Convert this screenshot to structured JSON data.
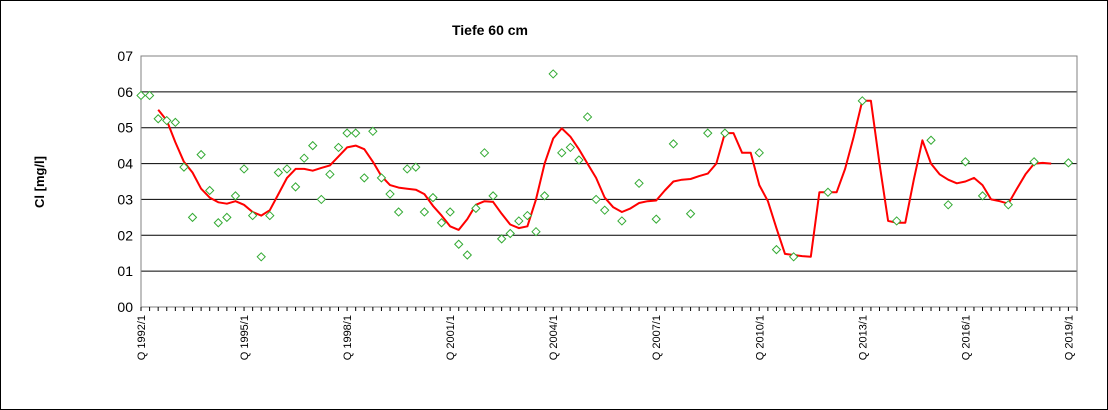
{
  "chart_data": {
    "type": "line",
    "title": "Tiefe  60 cm",
    "ylabel": "Cl [mg/l]",
    "xlabel": "",
    "ylim": [
      0,
      7
    ],
    "y_ticks": [
      "00",
      "01",
      "02",
      "03",
      "04",
      "05",
      "06",
      "07"
    ],
    "x_tick_labels": [
      "Q 1992/1",
      "Q 1995/1",
      "Q 1998/1",
      "Q 2001/1",
      "Q 2004/1",
      "Q 2007/1",
      "Q 2010/1",
      "Q 2013/1",
      "Q 2016/1",
      "Q 2019/1"
    ],
    "x_range": [
      1992.0,
      2019.25
    ],
    "grid": true,
    "colors": {
      "line": "#ff0000",
      "marker": "#33aa33",
      "grid": "#000000"
    },
    "series": [
      {
        "type": "scatter",
        "marker": "diamond-outline",
        "x": [
          1992.0,
          1992.25,
          1992.5,
          1992.75,
          1993.0,
          1993.25,
          1993.5,
          1993.75,
          1994.0,
          1994.25,
          1994.5,
          1994.75,
          1995.0,
          1995.25,
          1995.5,
          1995.75,
          1996.0,
          1996.25,
          1996.5,
          1996.75,
          1997.0,
          1997.25,
          1997.5,
          1997.75,
          1998.0,
          1998.25,
          1998.5,
          1998.75,
          1999.0,
          1999.25,
          1999.5,
          1999.75,
          2000.0,
          2000.25,
          2000.5,
          2000.75,
          2001.0,
          2001.25,
          2001.5,
          2001.75,
          2002.0,
          2002.25,
          2002.5,
          2002.75,
          2003.0,
          2003.25,
          2003.5,
          2003.75,
          2004.0,
          2004.25,
          2004.5,
          2004.75,
          2005.0,
          2005.25,
          2005.5,
          2006.0,
          2006.5,
          2007.0,
          2007.5,
          2008.0,
          2008.5,
          2009.0,
          2010.0,
          2010.5,
          2011.0,
          2012.0,
          2013.0,
          2014.0,
          2015.0,
          2015.5,
          2016.0,
          2016.5,
          2017.25,
          2018.0,
          2019.0
        ],
        "y": [
          5.9,
          5.9,
          5.25,
          5.2,
          5.15,
          3.9,
          2.5,
          4.25,
          3.25,
          2.35,
          2.5,
          3.1,
          3.85,
          2.55,
          1.4,
          2.55,
          3.75,
          3.85,
          3.35,
          4.15,
          4.5,
          3.0,
          3.7,
          4.45,
          4.85,
          4.85,
          3.6,
          4.9,
          3.6,
          3.15,
          2.65,
          3.85,
          3.9,
          2.65,
          3.05,
          2.35,
          2.65,
          1.75,
          1.45,
          2.75,
          4.3,
          3.1,
          1.9,
          2.05,
          2.4,
          2.55,
          2.1,
          3.1,
          6.5,
          4.3,
          4.45,
          4.1,
          5.3,
          3.0,
          2.7,
          2.4,
          3.45,
          2.45,
          4.55,
          2.6,
          4.85,
          4.85,
          4.3,
          1.6,
          1.4,
          3.2,
          5.75,
          2.4,
          4.65,
          2.85,
          4.05,
          3.1,
          2.85,
          4.05,
          4.02
        ]
      },
      {
        "type": "line",
        "x": [
          1992.5,
          1992.75,
          1993.0,
          1993.25,
          1993.5,
          1993.75,
          1994.0,
          1994.25,
          1994.5,
          1994.75,
          1995.0,
          1995.25,
          1995.5,
          1995.75,
          1996.0,
          1996.25,
          1996.5,
          1996.75,
          1997.0,
          1997.25,
          1997.5,
          1997.75,
          1998.0,
          1998.25,
          1998.5,
          1998.75,
          1999.0,
          1999.25,
          1999.5,
          1999.75,
          2000.0,
          2000.25,
          2000.5,
          2000.75,
          2001.0,
          2001.25,
          2001.5,
          2001.75,
          2002.0,
          2002.25,
          2002.5,
          2002.75,
          2003.0,
          2003.25,
          2003.5,
          2003.75,
          2004.0,
          2004.25,
          2004.5,
          2004.75,
          2005.0,
          2005.25,
          2005.5,
          2005.75,
          2006.0,
          2006.25,
          2006.5,
          2006.75,
          2007.0,
          2007.25,
          2007.5,
          2007.75,
          2008.0,
          2008.25,
          2008.5,
          2008.75,
          2009.0,
          2009.25,
          2009.5,
          2009.75,
          2010.0,
          2010.25,
          2010.5,
          2010.75,
          2011.0,
          2011.25,
          2011.5,
          2011.75,
          2012.0,
          2012.25,
          2012.5,
          2012.75,
          2013.0,
          2013.25,
          2013.5,
          2013.75,
          2014.0,
          2014.25,
          2014.5,
          2014.75,
          2015.0,
          2015.25,
          2015.5,
          2015.75,
          2016.0,
          2016.25,
          2016.5,
          2016.75,
          2017.0,
          2017.25,
          2017.5,
          2017.75,
          2018.0,
          2018.25,
          2018.5
        ],
        "y": [
          5.5,
          5.2,
          4.6,
          4.05,
          3.75,
          3.3,
          3.05,
          2.92,
          2.88,
          2.95,
          2.85,
          2.65,
          2.55,
          2.7,
          3.15,
          3.6,
          3.85,
          3.85,
          3.8,
          3.88,
          3.95,
          4.2,
          4.45,
          4.5,
          4.4,
          4.05,
          3.65,
          3.4,
          3.33,
          3.3,
          3.27,
          3.15,
          2.82,
          2.55,
          2.25,
          2.15,
          2.45,
          2.85,
          2.95,
          2.93,
          2.6,
          2.3,
          2.2,
          2.25,
          3.0,
          4.0,
          4.7,
          4.98,
          4.75,
          4.4,
          4.0,
          3.6,
          3.05,
          2.78,
          2.65,
          2.75,
          2.9,
          2.95,
          2.97,
          3.25,
          3.5,
          3.55,
          3.57,
          3.65,
          3.72,
          4.0,
          4.85,
          4.85,
          4.3,
          4.3,
          3.4,
          2.95,
          2.2,
          1.48,
          1.45,
          1.42,
          1.4,
          3.2,
          3.2,
          3.2,
          3.85,
          4.75,
          5.75,
          5.75,
          4.0,
          2.4,
          2.35,
          2.35,
          3.55,
          4.65,
          4.0,
          3.7,
          3.55,
          3.45,
          3.5,
          3.6,
          3.4,
          3.0,
          2.95,
          2.88,
          3.3,
          3.7,
          4.0,
          4.02,
          4.0
        ]
      }
    ]
  }
}
